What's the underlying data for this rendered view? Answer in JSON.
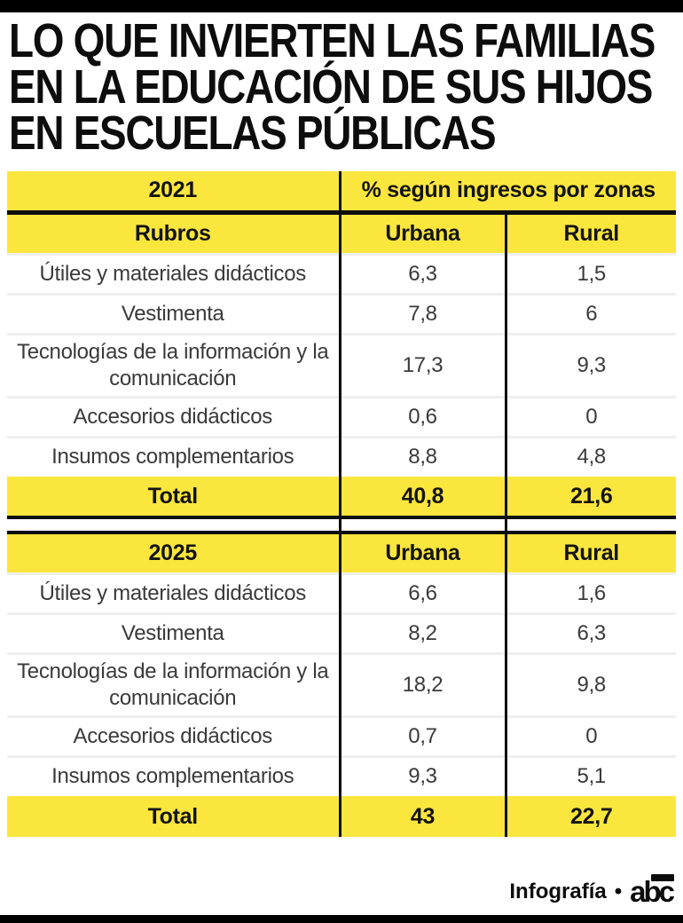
{
  "title_lines": [
    "LO QUE INVIERTEN LAS FAMILIAS",
    "EN LA EDUCACIÓN DE SUS HIJOS",
    "EN ESCUELAS PÚBLICAS"
  ],
  "colors": {
    "accent_yellow": "#FBE63E",
    "bar_black": "#000000"
  },
  "tables": [
    {
      "year": "2021",
      "span_header": "% según ingresos por zonas",
      "col_headers": {
        "rubros": "Rubros",
        "urbana": "Urbana",
        "rural": "Rural"
      },
      "rows": [
        {
          "label": "Útiles y materiales didácticos",
          "urbana": "6,3",
          "rural": "1,5"
        },
        {
          "label": "Vestimenta",
          "urbana": "7,8",
          "rural": "6"
        },
        {
          "label": "Tecnologías de la información y la comunicación",
          "urbana": "17,3",
          "rural": "9,3"
        },
        {
          "label": "Accesorios didácticos",
          "urbana": "0,6",
          "rural": "0"
        },
        {
          "label": "Insumos complementarios",
          "urbana": "8,8",
          "rural": "4,8"
        }
      ],
      "total": {
        "label": "Total",
        "urbana": "40,8",
        "rural": "21,6"
      }
    },
    {
      "year": "2025",
      "col_headers": {
        "urbana": "Urbana",
        "rural": "Rural"
      },
      "rows": [
        {
          "label": "Útiles y materiales didácticos",
          "urbana": "6,6",
          "rural": "1,6"
        },
        {
          "label": "Vestimenta",
          "urbana": "8,2",
          "rural": "6,3"
        },
        {
          "label": "Tecnologías de la información y la comunicación",
          "urbana": "18,2",
          "rural": "9,8"
        },
        {
          "label": "Accesorios didácticos",
          "urbana": "0,7",
          "rural": "0"
        },
        {
          "label": "Insumos complementarios",
          "urbana": "9,3",
          "rural": "5,1"
        }
      ],
      "total": {
        "label": "Total",
        "urbana": "43",
        "rural": "22,7"
      }
    }
  ],
  "footer": {
    "credit": "Infografía",
    "separator": "•",
    "logo": "abc"
  },
  "chart_data": [
    {
      "type": "table",
      "title": "LO QUE INVIERTEN LAS FAMILIAS EN LA EDUCACIÓN DE SUS HIJOS EN ESCUELAS PÚBLICAS",
      "subtitle": "% según ingresos por zonas",
      "year": 2021,
      "columns": [
        "Rubros",
        "Urbana",
        "Rural"
      ],
      "rows": [
        [
          "Útiles y materiales didácticos",
          6.3,
          1.5
        ],
        [
          "Vestimenta",
          7.8,
          6
        ],
        [
          "Tecnologías de la información y la comunicación",
          17.3,
          9.3
        ],
        [
          "Accesorios didácticos",
          0.6,
          0
        ],
        [
          "Insumos complementarios",
          8.8,
          4.8
        ],
        [
          "Total",
          40.8,
          21.6
        ]
      ]
    },
    {
      "type": "table",
      "year": 2025,
      "columns": [
        "Rubros",
        "Urbana",
        "Rural"
      ],
      "rows": [
        [
          "Útiles y materiales didácticos",
          6.6,
          1.6
        ],
        [
          "Vestimenta",
          8.2,
          6.3
        ],
        [
          "Tecnologías de la información y la comunicación",
          18.2,
          9.8
        ],
        [
          "Accesorios didácticos",
          0.7,
          0
        ],
        [
          "Insumos complementarios",
          9.3,
          5.1
        ],
        [
          "Total",
          43,
          22.7
        ]
      ]
    }
  ]
}
